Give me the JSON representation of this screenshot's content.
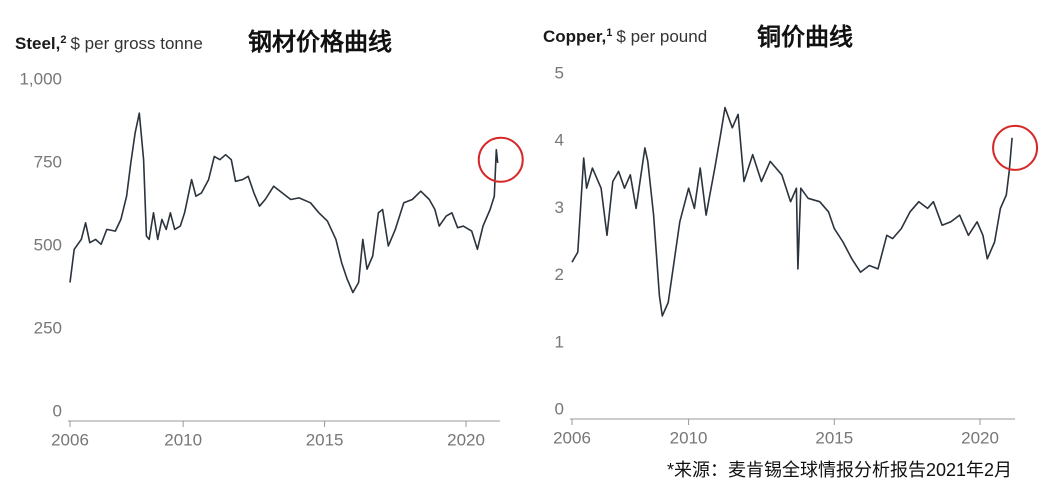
{
  "chart_data": [
    {
      "type": "line",
      "title": "Steel,",
      "title_note": "2",
      "subtitle": "$ per gross tonne",
      "annotation": "钢材价格曲线",
      "color": "#2b333d",
      "grid": false,
      "xlim": [
        2006,
        2021.2
      ],
      "xticks": [
        2006,
        2010,
        2015,
        2020
      ],
      "ylim": [
        0,
        1000
      ],
      "yticks": [
        0,
        250,
        500,
        750,
        {
          "value": 1000,
          "label": "1,000"
        }
      ],
      "x": [
        2006.0,
        2006.15,
        2006.4,
        2006.55,
        2006.7,
        2006.9,
        2007.1,
        2007.3,
        2007.6,
        2007.8,
        2008.0,
        2008.15,
        2008.3,
        2008.45,
        2008.6,
        2008.7,
        2008.8,
        2008.95,
        2009.1,
        2009.25,
        2009.4,
        2009.55,
        2009.7,
        2009.9,
        2010.05,
        2010.3,
        2010.45,
        2010.65,
        2010.9,
        2011.1,
        2011.3,
        2011.5,
        2011.7,
        2011.85,
        2012.1,
        2012.3,
        2012.5,
        2012.7,
        2012.9,
        2013.2,
        2013.5,
        2013.8,
        2014.1,
        2014.5,
        2014.8,
        2015.1,
        2015.4,
        2015.6,
        2015.8,
        2016.0,
        2016.2,
        2016.35,
        2016.5,
        2016.7,
        2016.9,
        2017.05,
        2017.25,
        2017.5,
        2017.8,
        2018.1,
        2018.4,
        2018.7,
        2018.9,
        2019.05,
        2019.3,
        2019.5,
        2019.7,
        2019.9,
        2020.2,
        2020.4,
        2020.6,
        2020.85,
        2021.0,
        2021.07,
        2021.12
      ],
      "values": [
        390,
        490,
        520,
        570,
        510,
        520,
        505,
        550,
        545,
        580,
        650,
        750,
        840,
        900,
        760,
        530,
        520,
        600,
        520,
        580,
        550,
        600,
        550,
        560,
        600,
        700,
        650,
        660,
        700,
        770,
        760,
        775,
        760,
        695,
        700,
        710,
        660,
        620,
        640,
        680,
        660,
        640,
        645,
        630,
        600,
        575,
        520,
        450,
        400,
        360,
        390,
        520,
        430,
        470,
        600,
        610,
        500,
        550,
        630,
        640,
        665,
        640,
        610,
        560,
        590,
        600,
        555,
        560,
        545,
        490,
        560,
        610,
        650,
        790,
        750
      ]
    },
    {
      "type": "line",
      "title": "Copper,",
      "title_note": "1",
      "subtitle": "$ per pound",
      "annotation": "铜价曲线",
      "color": "#2b333d",
      "grid": false,
      "xlim": [
        2006,
        2021.2
      ],
      "xticks": [
        2006,
        2010,
        2015,
        2020
      ],
      "ylim": [
        0,
        5
      ],
      "yticks": [
        0,
        1,
        2,
        3,
        4,
        5
      ],
      "x": [
        2006.0,
        2006.2,
        2006.4,
        2006.5,
        2006.7,
        2007.0,
        2007.2,
        2007.4,
        2007.6,
        2007.8,
        2008.0,
        2008.2,
        2008.5,
        2008.6,
        2008.8,
        2009.0,
        2009.1,
        2009.3,
        2009.5,
        2009.7,
        2010.0,
        2010.2,
        2010.4,
        2010.6,
        2010.9,
        2011.1,
        2011.25,
        2011.5,
        2011.7,
        2011.9,
        2012.2,
        2012.5,
        2012.8,
        2013.2,
        2013.5,
        2013.7,
        2013.75,
        2013.85,
        2014.1,
        2014.5,
        2014.8,
        2015.0,
        2015.3,
        2015.6,
        2015.9,
        2016.2,
        2016.5,
        2016.8,
        2017.0,
        2017.3,
        2017.6,
        2017.9,
        2018.2,
        2018.4,
        2018.7,
        2019.0,
        2019.3,
        2019.6,
        2019.9,
        2020.1,
        2020.25,
        2020.5,
        2020.7,
        2020.9,
        2021.0,
        2021.1
      ],
      "values": [
        2.2,
        2.35,
        3.75,
        3.3,
        3.6,
        3.3,
        2.6,
        3.4,
        3.55,
        3.3,
        3.5,
        3.0,
        3.9,
        3.7,
        2.9,
        1.7,
        1.4,
        1.6,
        2.2,
        2.8,
        3.3,
        3.0,
        3.6,
        2.9,
        3.6,
        4.1,
        4.5,
        4.2,
        4.4,
        3.4,
        3.8,
        3.4,
        3.7,
        3.5,
        3.1,
        3.3,
        2.1,
        3.3,
        3.15,
        3.1,
        2.95,
        2.7,
        2.5,
        2.25,
        2.05,
        2.15,
        2.1,
        2.6,
        2.55,
        2.7,
        2.95,
        3.1,
        3.0,
        3.1,
        2.75,
        2.8,
        2.9,
        2.6,
        2.8,
        2.6,
        2.25,
        2.5,
        3.0,
        3.2,
        3.55,
        4.05
      ]
    }
  ],
  "footnote": "*来源：麦肯锡全球情报分析报告2021年2月"
}
